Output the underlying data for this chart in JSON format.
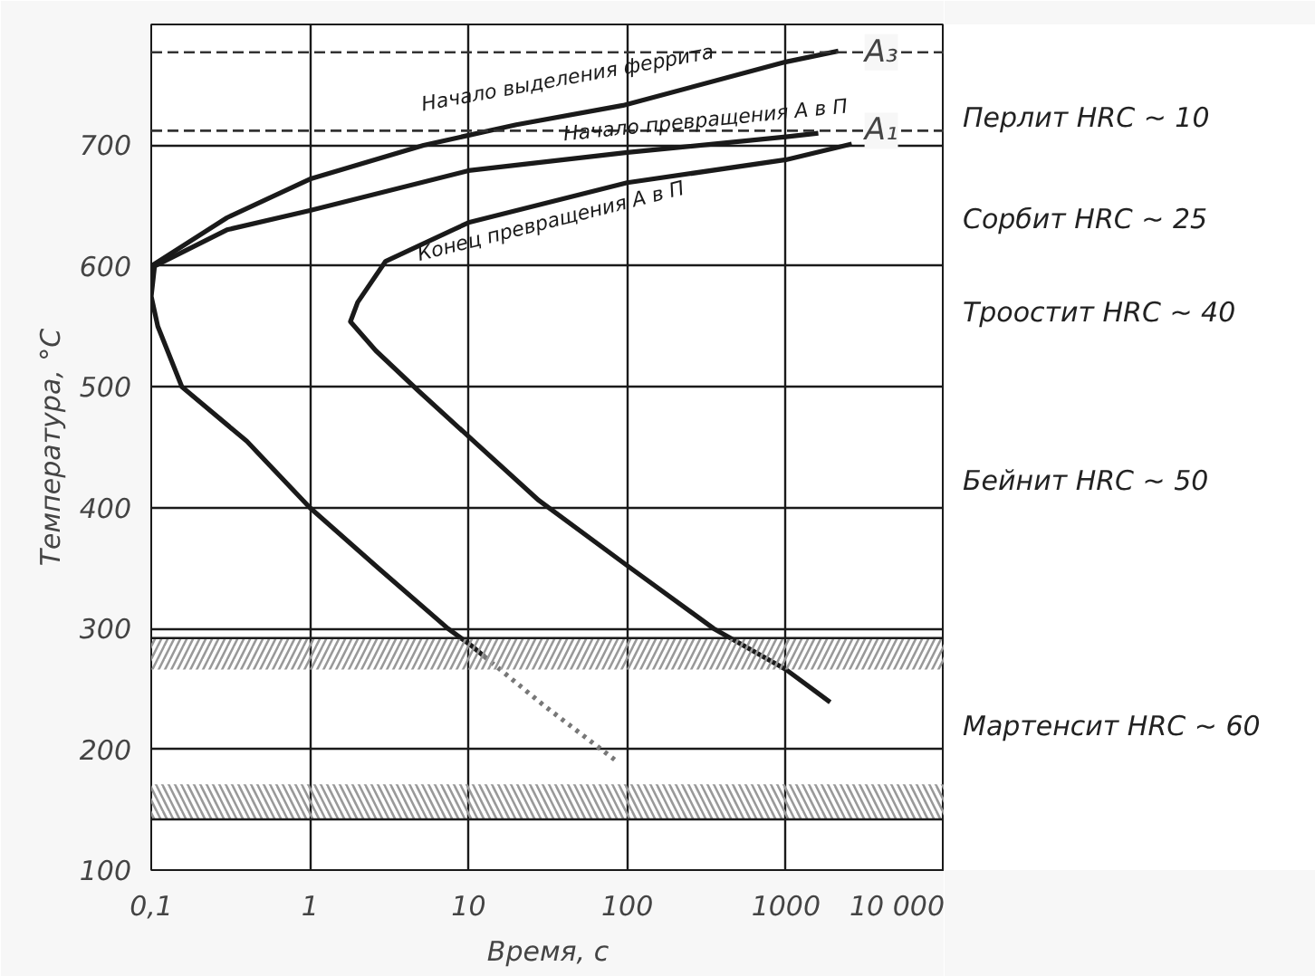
{
  "chart_data": {
    "type": "line",
    "xlabel": "Время, с",
    "ylabel": "Температура, °С",
    "log": "x",
    "grid": true,
    "legend": false,
    "line_style": "solid",
    "marker": "none",
    "xlim": [
      0.1,
      10000
    ],
    "ylim": [
      100,
      800
    ],
    "xticks": [
      {
        "value": 0.1,
        "label": "0,1"
      },
      1,
      10,
      100,
      1000,
      {
        "value": 10000,
        "label": "10 000"
      }
    ],
    "yticks": [
      100,
      200,
      300,
      400,
      500,
      600,
      700,
      {
        "value": 800,
        "label": null
      }
    ],
    "series": [
      {
        "name": "Начало выделения феррита",
        "color": "#1a1a1a",
        "x": [
          0.1,
          0.3,
          1,
          5.2,
          20,
          94,
          1000,
          2140
        ],
        "values": [
          600,
          640,
          672,
          700,
          717,
          733,
          769,
          778
        ]
      },
      {
        "name": "Начало превращения А в П",
        "color": "#1a1a1a",
        "x": [
          12.5,
          10.6,
          7.4,
          2.7,
          1,
          0.4,
          0.156,
          0.11,
          0.1,
          0.105,
          0.3,
          1,
          10,
          100,
          1000,
          1600
        ],
        "values": [
          277,
          285,
          300,
          350,
          400,
          455,
          500,
          550,
          575,
          600,
          630,
          646,
          679,
          694,
          707,
          710
        ]
      },
      {
        "name": "Конец превращения А в П",
        "color": "#1a1a1a",
        "x": [
          1900,
          1000,
          350,
          100,
          27.7,
          4.8,
          2.6,
          1.8,
          2.0,
          3.0,
          10,
          100,
          1000,
          2600
        ],
        "values": [
          239,
          266,
          300,
          352,
          406,
          497,
          530,
          554,
          570,
          604,
          636,
          669,
          688,
          701
        ]
      },
      {
        "color": "#777777",
        "line_style": "dotted",
        "x": [
          12.5,
          30,
          86
        ],
        "values": [
          277,
          236,
          190
        ]
      }
    ],
    "ref_lines": [
      {
        "axis": "y",
        "value": 777,
        "label": "A₃",
        "line_style": "dashed",
        "color": "#333333"
      },
      {
        "axis": "y",
        "value": 712,
        "label": "A₁",
        "line_style": "dashed",
        "color": "#333333"
      },
      {
        "axis": "y",
        "value": 292,
        "line_style": "solid",
        "color": "#1a1a1a"
      },
      {
        "axis": "y",
        "value": 142,
        "line_style": "solid",
        "color": "#1a1a1a"
      }
    ],
    "bands": [
      {
        "axis": "y",
        "from": 266,
        "to": 292,
        "color": "#999999"
      },
      {
        "axis": "y",
        "from": 142,
        "to": 171,
        "color": "#999999"
      }
    ],
    "annotations": [
      "Перлит HRC ~ 10",
      "Сорбит HRC ~ 25",
      "Троостит HRC ~ 40",
      "Бейнит HRC ~ 50",
      "Мартенсит HRC ~ 60"
    ]
  }
}
